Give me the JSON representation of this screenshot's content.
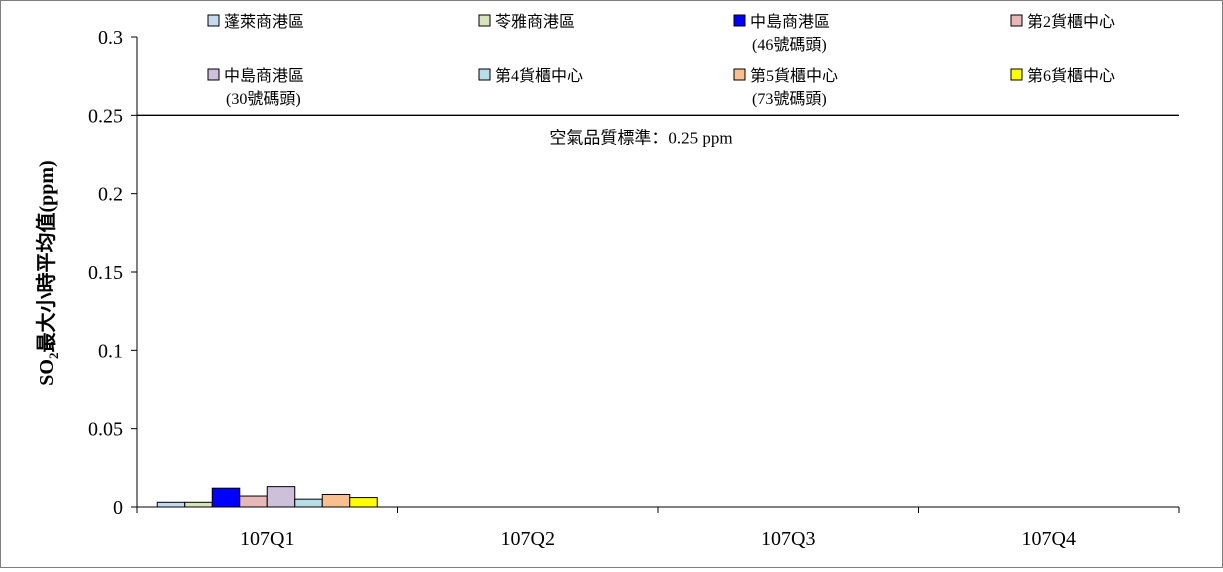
{
  "chart_data": {
    "type": "bar",
    "title": "",
    "xlabel": "",
    "ylabel": "SO₂最大小時平均值(ppm)",
    "ylabel_parts": {
      "prefix": "SO",
      "subscript": "2",
      "rest": "最大小時平均值(ppm)"
    },
    "ylim": [
      0,
      0.3
    ],
    "y_ticks": [
      "0",
      "0.05",
      "0.1",
      "0.15",
      "0.2",
      "0.25",
      "0.3"
    ],
    "y_tick_values": [
      0,
      0.05,
      0.1,
      0.15,
      0.2,
      0.25,
      0.3
    ],
    "categories": [
      "107Q1",
      "107Q2",
      "107Q3",
      "107Q4"
    ],
    "grid": false,
    "legend_position": "top",
    "series": [
      {
        "name": [
          "蓬萊商港區"
        ],
        "color": "#c5d9f1",
        "values": [
          0.003,
          null,
          null,
          null
        ]
      },
      {
        "name": [
          "苓雅商港區"
        ],
        "color": "#d8e4bc",
        "values": [
          0.003,
          null,
          null,
          null
        ]
      },
      {
        "name": [
          "中島商港區",
          "(46號碼頭)"
        ],
        "color": "#0000ff",
        "values": [
          0.012,
          null,
          null,
          null
        ]
      },
      {
        "name": [
          "第2貨櫃中心"
        ],
        "color": "#e6b8b7",
        "values": [
          0.007,
          null,
          null,
          null
        ]
      },
      {
        "name": [
          "中島商港區",
          "(30號碼頭)"
        ],
        "color": "#ccc0da",
        "values": [
          0.013,
          null,
          null,
          null
        ]
      },
      {
        "name": [
          "第4貨櫃中心"
        ],
        "color": "#b7dee8",
        "values": [
          0.005,
          null,
          null,
          null
        ]
      },
      {
        "name": [
          "第5貨櫃中心",
          "(73號碼頭)"
        ],
        "color": "#fabf8f",
        "values": [
          0.008,
          null,
          null,
          null
        ]
      },
      {
        "name": [
          "第6貨櫃中心"
        ],
        "color": "#ffff00",
        "values": [
          0.006,
          null,
          null,
          null
        ]
      }
    ],
    "reference_line": {
      "value": 0.25,
      "label": "空氣品質標準：0.25 ppm"
    }
  }
}
